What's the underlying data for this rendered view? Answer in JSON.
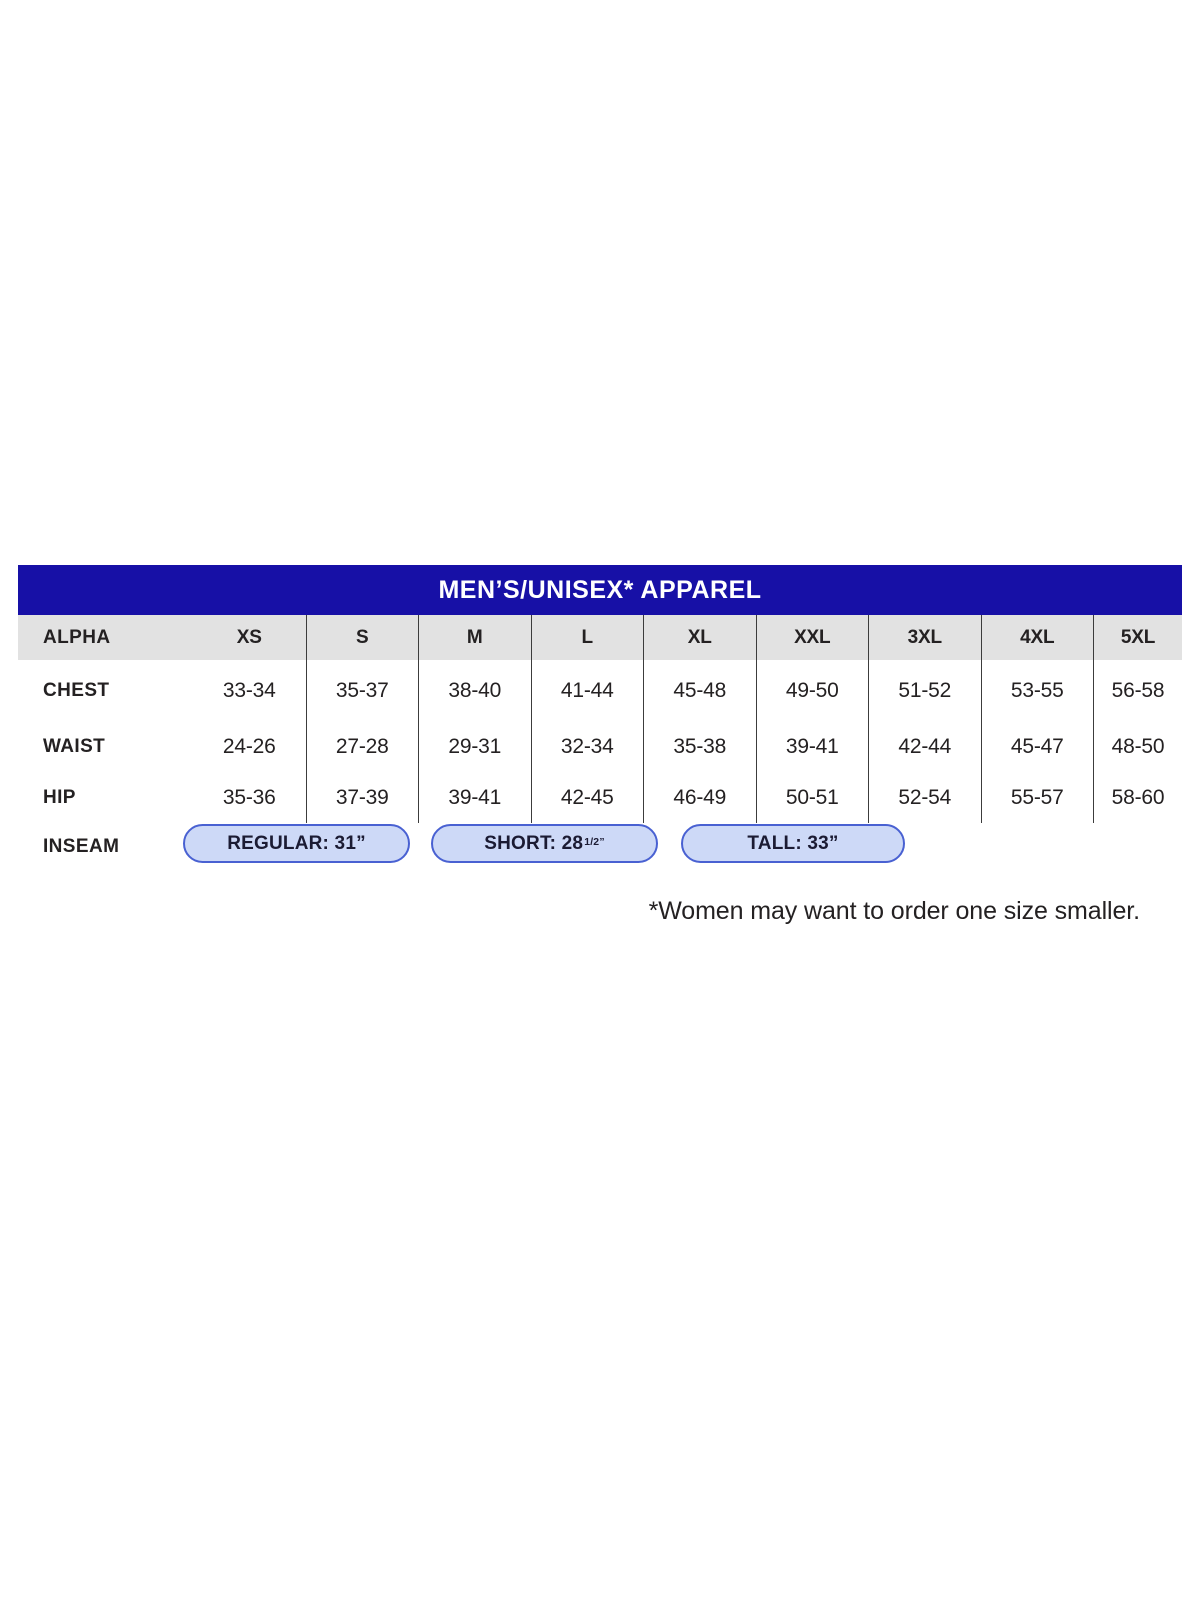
{
  "chart_data": {
    "type": "table",
    "title": "MEN’S/UNISEX* APPAREL",
    "columns": [
      "ALPHA",
      "XS",
      "S",
      "M",
      "L",
      "XL",
      "XXL",
      "3XL",
      "4XL",
      "5XL"
    ],
    "rows": [
      {
        "label": "CHEST",
        "values": [
          "33-34",
          "35-37",
          "38-40",
          "41-44",
          "45-48",
          "49-50",
          "51-52",
          "53-55",
          "56-58"
        ]
      },
      {
        "label": "WAIST",
        "values": [
          "24-26",
          "27-28",
          "29-31",
          "32-34",
          "35-38",
          "39-41",
          "42-44",
          "45-47",
          "48-50"
        ]
      },
      {
        "label": "HIP",
        "values": [
          "35-36",
          "37-39",
          "39-41",
          "42-45",
          "46-49",
          "50-51",
          "52-54",
          "55-57",
          "58-60"
        ]
      }
    ],
    "inseam": {
      "label": "INSEAM",
      "options": [
        {
          "text": "REGULAR: 31”",
          "sup": ""
        },
        {
          "text": "SHORT: 28",
          "sup": "1/2”"
        },
        {
          "text": "TALL: 33”",
          "sup": ""
        }
      ]
    },
    "footnote": "*Women may want to order one size smaller."
  },
  "colors": {
    "title_bar": "#1710A6",
    "title_text": "#FFFFFF",
    "header_row_bg": "#E2E2E2",
    "grid_line": "#3C3C3C",
    "body_text": "#242122",
    "pill_fill": "#CDD9F7",
    "pill_border": "#4961D2",
    "background": "#FFFFFF"
  }
}
